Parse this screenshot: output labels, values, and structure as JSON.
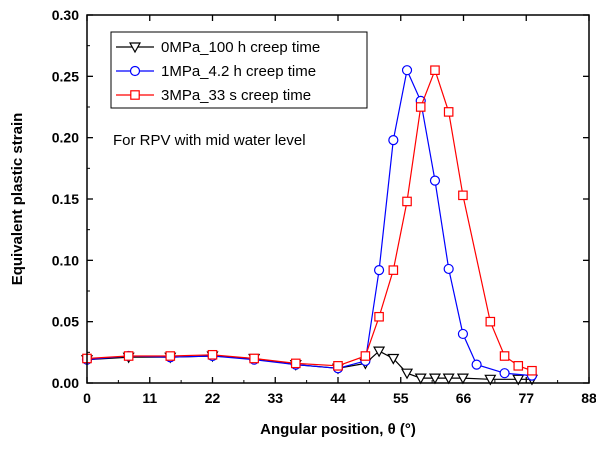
{
  "chart_data": {
    "type": "line",
    "xlabel": "Angular position, θ (°)",
    "ylabel": "Equivalent plastic strain",
    "xlim": [
      0,
      88
    ],
    "ylim": [
      0,
      0.3
    ],
    "x_ticks": [
      "0",
      "11",
      "22",
      "33",
      "44",
      "55",
      "66",
      "77",
      "88"
    ],
    "y_ticks": [
      "0.00",
      "0.05",
      "0.10",
      "0.15",
      "0.20",
      "0.25",
      "0.30"
    ],
    "annotation": "For RPV with mid water level",
    "legend_position": "top-left",
    "series": [
      {
        "name": "0MPa_100 h creep time",
        "color": "#000000",
        "marker": "triangle-down",
        "points": [
          [
            0,
            0.019
          ],
          [
            7.3,
            0.021
          ],
          [
            14.6,
            0.021
          ],
          [
            22,
            0.022
          ],
          [
            29.3,
            0.02
          ],
          [
            36.6,
            0.015
          ],
          [
            44,
            0.012
          ],
          [
            48.8,
            0.016
          ],
          [
            51.2,
            0.026
          ],
          [
            53.7,
            0.02
          ],
          [
            56.1,
            0.008
          ],
          [
            58.5,
            0.004
          ],
          [
            61,
            0.004
          ],
          [
            63.4,
            0.004
          ],
          [
            65.9,
            0.004
          ],
          [
            70.7,
            0.003
          ],
          [
            75.6,
            0.003
          ],
          [
            78,
            0.003
          ]
        ]
      },
      {
        "name": "1MPa_4.2 h creep time",
        "color": "#0000ff",
        "marker": "circle",
        "points": [
          [
            0,
            0.019
          ],
          [
            7.3,
            0.022
          ],
          [
            14.6,
            0.021
          ],
          [
            22,
            0.022
          ],
          [
            29.3,
            0.019
          ],
          [
            36.6,
            0.015
          ],
          [
            44,
            0.012
          ],
          [
            48.8,
            0.018
          ],
          [
            51.2,
            0.092
          ],
          [
            53.7,
            0.198
          ],
          [
            56.1,
            0.255
          ],
          [
            58.5,
            0.23
          ],
          [
            61,
            0.165
          ],
          [
            63.4,
            0.093
          ],
          [
            65.9,
            0.04
          ],
          [
            68.3,
            0.015
          ],
          [
            73.2,
            0.008
          ],
          [
            78,
            0.006
          ]
        ]
      },
      {
        "name": "3MPa_33 s creep time",
        "color": "#ff0000",
        "marker": "square",
        "points": [
          [
            0,
            0.02
          ],
          [
            7.3,
            0.022
          ],
          [
            14.6,
            0.022
          ],
          [
            22,
            0.023
          ],
          [
            29.3,
            0.02
          ],
          [
            36.6,
            0.016
          ],
          [
            44,
            0.014
          ],
          [
            48.8,
            0.022
          ],
          [
            51.2,
            0.054
          ],
          [
            53.7,
            0.092
          ],
          [
            56.1,
            0.148
          ],
          [
            58.5,
            0.225
          ],
          [
            61,
            0.255
          ],
          [
            63.4,
            0.221
          ],
          [
            65.9,
            0.153
          ],
          [
            70.7,
            0.05
          ],
          [
            73.2,
            0.022
          ],
          [
            75.6,
            0.014
          ],
          [
            78,
            0.01
          ]
        ]
      }
    ]
  }
}
